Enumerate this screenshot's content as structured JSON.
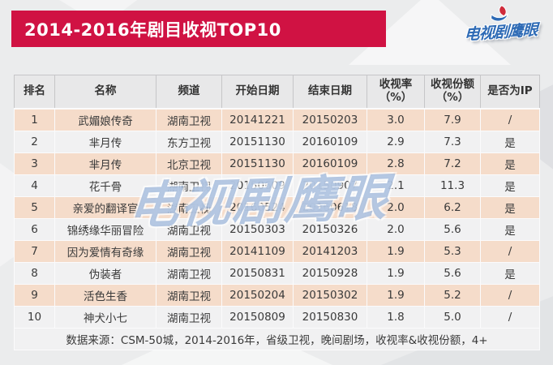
{
  "page": {
    "banner_title": "2014-2016年剧目收视TOP10",
    "logo_text": "电视剧鹰眼",
    "watermark_text": "电视剧鹰眼"
  },
  "colors": {
    "banner_red": "#d01243",
    "logo_blue": "#2d6ab5",
    "row_odd_peach": "#f5dcca",
    "row_even_gray": "#f1f1f2",
    "header_gray": "#e8e8e9",
    "background": "#ebeced"
  },
  "chart_data": {
    "type": "table",
    "title": "2014-2016年剧目收视TOP10",
    "columns": [
      "排名",
      "名称",
      "频道",
      "开始日期",
      "结束日期",
      "收视率\n（%）",
      "收视份额\n（%）",
      "是否为IP"
    ],
    "rows": [
      [
        "1",
        "武媚娘传奇",
        "湖南卫视",
        "20141221",
        "20150203",
        "3.0",
        "7.9",
        "/"
      ],
      [
        "2",
        "芈月传",
        "东方卫视",
        "20151130",
        "20160109",
        "2.9",
        "7.3",
        "是"
      ],
      [
        "3",
        "芈月传",
        "北京卫视",
        "20151130",
        "20160109",
        "2.8",
        "7.2",
        "是"
      ],
      [
        "4",
        "花千骨",
        "湖南卫视",
        "20150609",
        "20150907",
        "2.1",
        "11.3",
        "是"
      ],
      [
        "5",
        "亲爱的翻译官",
        "湖南卫视",
        "20160524",
        "20160618",
        "2.0",
        "6.2",
        "是"
      ],
      [
        "6",
        "锦绣缘华丽冒险",
        "湖南卫视",
        "20150303",
        "20150326",
        "2.0",
        "5.6",
        "是"
      ],
      [
        "7",
        "因为爱情有奇缘",
        "湖南卫视",
        "20141109",
        "20141203",
        "1.9",
        "5.3",
        "/"
      ],
      [
        "8",
        "伪装者",
        "湖南卫视",
        "20150831",
        "20150928",
        "1.9",
        "5.6",
        "是"
      ],
      [
        "9",
        "活色生香",
        "湖南卫视",
        "20150204",
        "20150302",
        "1.9",
        "5.2",
        "/"
      ],
      [
        "10",
        "神犬小七",
        "湖南卫视",
        "20150809",
        "20150830",
        "1.8",
        "5.0",
        "/"
      ]
    ],
    "source_note": "数据来源：CSM-50城，2014-2016年，省级卫视，晚间剧场，收视率&收视份额，4+"
  }
}
